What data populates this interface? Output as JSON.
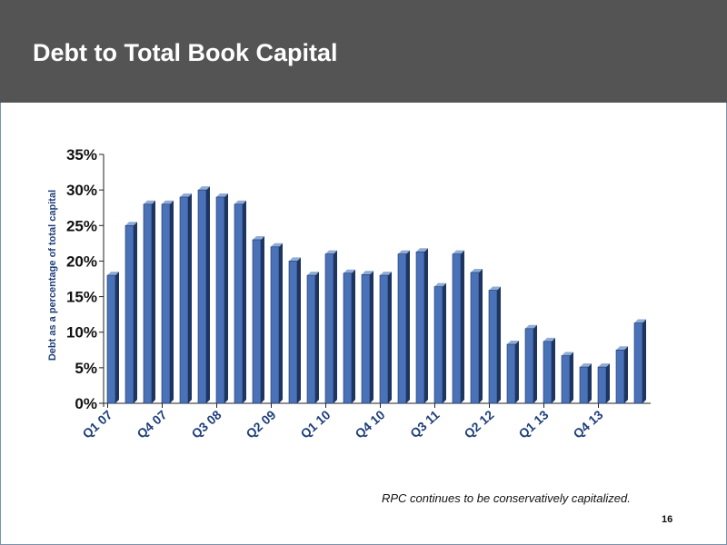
{
  "slide": {
    "title": "Debt to Total Book Capital",
    "footnote": "RPC continues to be conservatively capitalized.",
    "page_number": "16"
  },
  "colors": {
    "header_bg": "#545454",
    "bar_front": "#4a72b8",
    "bar_side": "#1e3560",
    "bar_top": "#8fabd8",
    "label_blue": "#1f3f7a"
  },
  "chart_data": {
    "type": "bar",
    "title": "",
    "xlabel": "",
    "ylabel": "Debt as a percentage of total capital",
    "ylim": [
      0,
      35
    ],
    "yticks": [
      0,
      5,
      10,
      15,
      20,
      25,
      30,
      35
    ],
    "ytick_labels": [
      "0%",
      "5%",
      "10%",
      "15%",
      "20%",
      "25%",
      "30%",
      "35%"
    ],
    "categories": [
      "Q1 07",
      "Q2 07",
      "Q3 07",
      "Q4 07",
      "Q1 08",
      "Q2 08",
      "Q3 08",
      "Q4 08",
      "Q1 09",
      "Q2 09",
      "Q3 09",
      "Q4 09",
      "Q1 10",
      "Q2 10",
      "Q3 10",
      "Q4 10",
      "Q1 11",
      "Q2 11",
      "Q3 11",
      "Q4 11",
      "Q1 12",
      "Q2 12",
      "Q3 12",
      "Q4 12",
      "Q1 13",
      "Q2 13",
      "Q3 13",
      "Q4 13",
      "Q1 14",
      "Q2 14"
    ],
    "shown_category_labels": [
      "Q1 07",
      "Q4 07",
      "Q3 08",
      "Q2 09",
      "Q1 10",
      "Q4 10",
      "Q3 11",
      "Q2 12",
      "Q1 13",
      "Q4 13"
    ],
    "values": [
      18,
      25,
      28,
      28,
      29,
      30,
      29,
      28,
      23,
      22,
      20,
      18,
      21,
      18.3,
      18.1,
      18,
      21,
      21.3,
      16.4,
      21,
      18.4,
      15.9,
      8.3,
      10.5,
      8.7,
      6.7,
      5.1,
      5.1,
      7.5,
      11.3
    ],
    "grid": false,
    "legend": "none"
  }
}
